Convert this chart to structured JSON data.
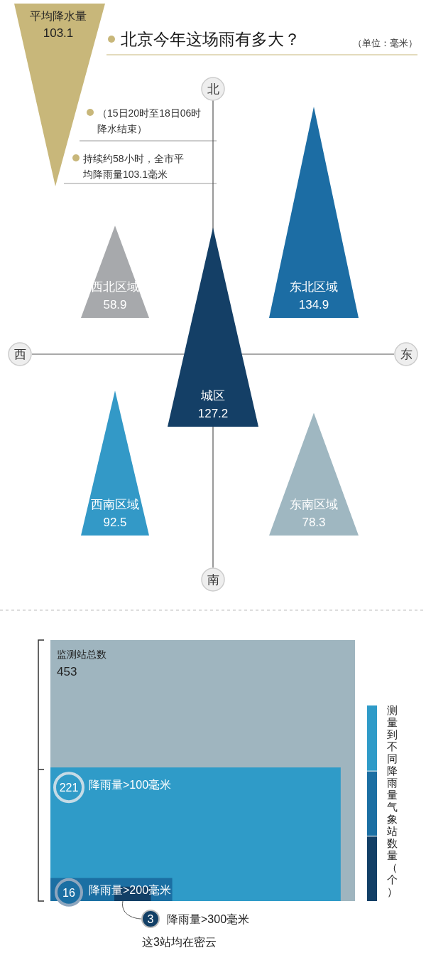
{
  "chart_data": [
    {
      "type": "other",
      "title": "北京今年这场雨有多大？",
      "subtitle": "（单位：毫米）",
      "data_labels": true,
      "categories": [
        "西北区域",
        "东北区域",
        "城区",
        "西南区域",
        "东南区域"
      ],
      "values": [
        58.9,
        134.9,
        127.2,
        92.5,
        78.3
      ],
      "colors": [
        "#a7a9ac",
        "#1c6da4",
        "#143f66",
        "#3399c7",
        "#9fb7c1"
      ],
      "annotations": [
        "平均降水量",
        "103.1",
        "（15日20时至18日06时降水结束）",
        "持续约58小时，全市平均降雨量103.1毫米",
        "北",
        "南",
        "西",
        "东"
      ]
    },
    {
      "type": "other",
      "ylabel": "测量到不同降雨量气象站数量（个）",
      "data_labels": true,
      "categories": [
        "监测站总数",
        "降雨量>100毫米",
        "降雨量>200毫米",
        "降雨量>300毫米"
      ],
      "values": [
        453,
        221,
        16,
        3
      ],
      "colors": [
        "#9fb5bf",
        "#2f9bc8",
        "#1b6fa3",
        "#123f66"
      ],
      "annotations": [
        "这3站均在密云"
      ]
    }
  ]
}
